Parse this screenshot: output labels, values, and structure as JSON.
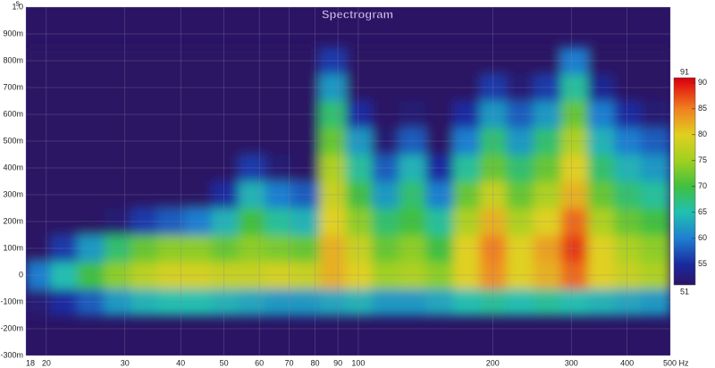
{
  "chart_data": {
    "type": "heatmap",
    "title": "Spectrogram",
    "y_unit": "s",
    "xscale": "log",
    "xlim": [
      18,
      500
    ],
    "xticks": [
      18,
      20,
      30,
      40,
      50,
      60,
      70,
      80,
      90,
      100,
      200,
      300,
      400,
      {
        "value": 500,
        "label": "500 Hz"
      }
    ],
    "ylim": [
      -0.3,
      1
    ],
    "yticks": [
      {
        "value": -0.3,
        "label": "-300m"
      },
      {
        "value": -0.2,
        "label": "-200m"
      },
      {
        "value": -0.1,
        "label": "-100m"
      },
      0,
      {
        "value": 0.1,
        "label": "100m"
      },
      {
        "value": 0.2,
        "label": "200m"
      },
      {
        "value": 0.3,
        "label": "300m"
      },
      {
        "value": 0.4,
        "label": "400m"
      },
      {
        "value": 0.5,
        "label": "500m"
      },
      {
        "value": 0.6,
        "label": "600m"
      },
      {
        "value": 0.7,
        "label": "700m"
      },
      {
        "value": 0.8,
        "label": "800m"
      },
      {
        "value": 0.9,
        "label": "900m"
      },
      {
        "value": 1,
        "label": "1.0"
      }
    ],
    "grid": true,
    "x": [
      19,
      22,
      25,
      29,
      33,
      38,
      44,
      50,
      58,
      66,
      76,
      88,
      100,
      115,
      132,
      152,
      175,
      200,
      230,
      265,
      305,
      350,
      400,
      460
    ],
    "y": [
      -0.1,
      0,
      0.1,
      0.2,
      0.3,
      0.4,
      0.5,
      0.6,
      0.7,
      0.8
    ],
    "z": [
      [
        52,
        55,
        58,
        62,
        64,
        65,
        65,
        64,
        63,
        62,
        62,
        63,
        64,
        62,
        62,
        63,
        65,
        66,
        65,
        66,
        65,
        64,
        63,
        62
      ],
      [
        60,
        65,
        70,
        74,
        77,
        79,
        79,
        78,
        78,
        79,
        78,
        82,
        80,
        75,
        76,
        74,
        80,
        84,
        80,
        82,
        86,
        80,
        78,
        76
      ],
      [
        50,
        56,
        62,
        68,
        72,
        74,
        74,
        72,
        74,
        73,
        72,
        82,
        78,
        72,
        74,
        70,
        80,
        85,
        80,
        83,
        88,
        80,
        76,
        74
      ],
      [
        45,
        45,
        48,
        52,
        56,
        58,
        60,
        64,
        70,
        66,
        64,
        80,
        74,
        68,
        70,
        66,
        76,
        82,
        76,
        80,
        86,
        76,
        72,
        70
      ],
      [
        45,
        45,
        45,
        45,
        45,
        48,
        50,
        55,
        64,
        60,
        58,
        78,
        70,
        62,
        68,
        60,
        72,
        78,
        72,
        76,
        82,
        72,
        68,
        66
      ],
      [
        45,
        45,
        45,
        45,
        45,
        45,
        45,
        48,
        56,
        52,
        50,
        76,
        66,
        58,
        64,
        55,
        66,
        72,
        68,
        72,
        80,
        68,
        64,
        62
      ],
      [
        45,
        45,
        45,
        45,
        45,
        45,
        45,
        45,
        48,
        45,
        45,
        72,
        62,
        52,
        58,
        48,
        60,
        68,
        62,
        68,
        76,
        64,
        60,
        58
      ],
      [
        45,
        45,
        45,
        45,
        45,
        45,
        45,
        45,
        45,
        45,
        45,
        68,
        55,
        48,
        52,
        45,
        55,
        62,
        58,
        62,
        72,
        60,
        55,
        52
      ],
      [
        45,
        45,
        45,
        45,
        45,
        45,
        45,
        45,
        45,
        45,
        45,
        62,
        50,
        45,
        48,
        45,
        50,
        56,
        52,
        56,
        66,
        54,
        50,
        48
      ],
      [
        45,
        45,
        45,
        45,
        45,
        45,
        45,
        45,
        45,
        45,
        45,
        56,
        45,
        45,
        45,
        45,
        45,
        50,
        45,
        50,
        60,
        48,
        45,
        45
      ]
    ],
    "colorbar": {
      "range": [
        51,
        91
      ],
      "ticks": [
        55,
        60,
        65,
        70,
        75,
        80,
        85,
        90
      ]
    }
  }
}
